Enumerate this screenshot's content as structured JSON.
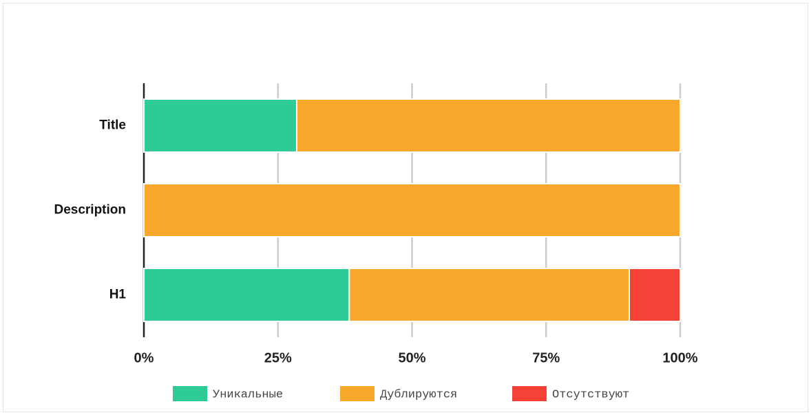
{
  "chart_data": {
    "type": "stacked_barh",
    "categories": [
      "Title",
      "Description",
      "H1"
    ],
    "series": [
      {
        "name": "Уникальные",
        "color": "#2ccb98",
        "values": [
          28.5,
          0,
          38.3
        ]
      },
      {
        "name": "Дублируются",
        "color": "#f8a72a",
        "values": [
          71.5,
          100,
          52.2
        ]
      },
      {
        "name": "Отсутствуют",
        "color": "#f44336",
        "values": [
          0,
          0,
          9.5
        ]
      }
    ],
    "xlim": [
      0,
      100
    ],
    "xticks": [
      {
        "value": 0,
        "label": "0%"
      },
      {
        "value": 25,
        "label": "25%"
      },
      {
        "value": 50,
        "label": "50%"
      },
      {
        "value": 75,
        "label": "75%"
      },
      {
        "value": 100,
        "label": "100%"
      }
    ],
    "grid": true,
    "legend": "bottom"
  }
}
